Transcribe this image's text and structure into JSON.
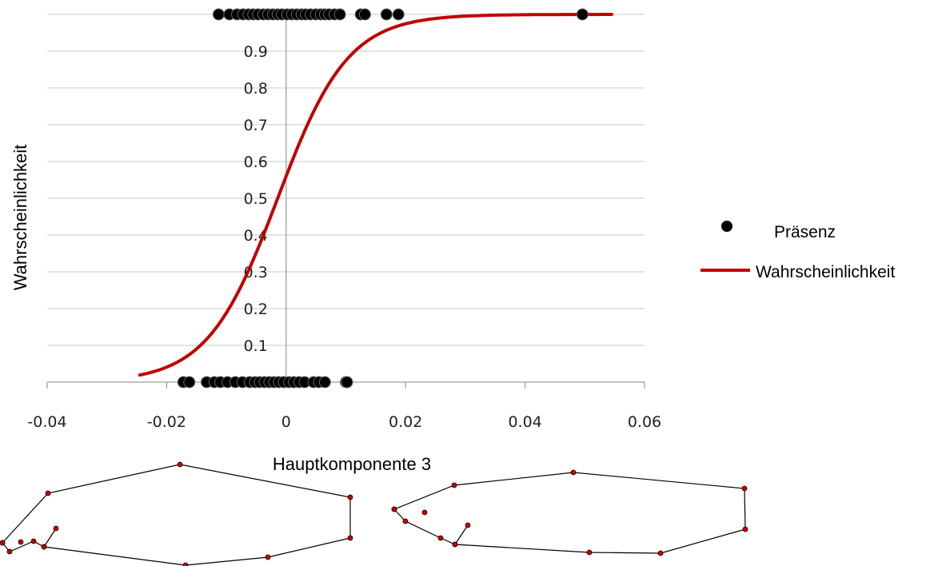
{
  "chart_data": {
    "type": "scatter",
    "xlabel": "Hauptkomponente 3",
    "ylabel": "Wahrscheinlichkeit",
    "xlim": [
      -0.04,
      0.06
    ],
    "ylim": [
      0,
      1
    ],
    "x_ticks": [
      "-0.04",
      "-0.02",
      "0",
      "0.02",
      "0.04",
      "0.06"
    ],
    "y_ticks": [
      "0.1",
      "0.2",
      "0.3",
      "0.4",
      "0.5",
      "0.6",
      "0.7",
      "0.8",
      "0.9"
    ],
    "grid": "horizontal",
    "legend": {
      "position": "right",
      "entries": [
        {
          "label": "Präsenz",
          "marker": "circle",
          "color": "#000000"
        },
        {
          "label": "Wahrscheinlichkeit",
          "marker": "line",
          "color": "#c00000"
        }
      ]
    },
    "series": [
      {
        "name": "Präsenz",
        "kind": "points",
        "color": "#000000",
        "points_y1_x": [
          -0.0113,
          -0.0095,
          -0.0082,
          -0.0072,
          -0.0063,
          -0.0055,
          -0.0047,
          -0.0038,
          -0.003,
          -0.0022,
          -0.0014,
          -0.0007,
          0.0002,
          0.001,
          0.0018,
          0.0026,
          0.0033,
          0.0041,
          0.005,
          0.0058,
          0.0065,
          0.0072,
          0.0081,
          0.009,
          0.0125,
          0.0132,
          0.0168,
          0.0188,
          0.0496
        ],
        "points_y0_x": [
          -0.0172,
          -0.0162,
          -0.0133,
          -0.012,
          -0.011,
          -0.0098,
          -0.0085,
          -0.0073,
          -0.0061,
          -0.0052,
          -0.0044,
          -0.0036,
          -0.0028,
          -0.002,
          -0.0012,
          -0.0004,
          0.0005,
          0.0013,
          0.0022,
          0.0031,
          0.0046,
          0.0055,
          0.0065,
          0.01,
          0.0102
        ]
      },
      {
        "name": "Wahrscheinlichkeit",
        "kind": "logistic",
        "color": "#c00000",
        "x_range": [
          -0.0245,
          0.0545
        ],
        "intercept": 0.24,
        "slope": 170
      }
    ]
  },
  "shapes": {
    "left": {
      "stroke": "#000000",
      "point_color": "#cc0000"
    },
    "right": {
      "stroke": "#000000",
      "point_color": "#cc0000"
    }
  }
}
